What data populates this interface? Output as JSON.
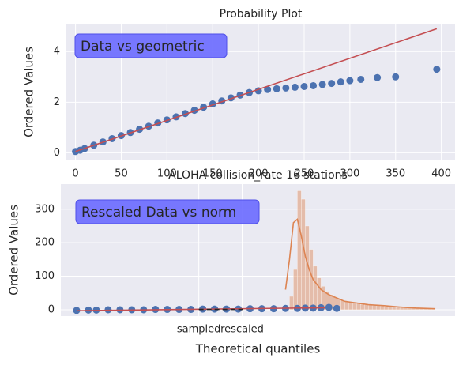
{
  "chart_data": [
    {
      "type": "scatter",
      "title": "Probability Plot",
      "ylabel": "Ordered Values",
      "annotation": "Data vs geometric",
      "x": [
        0,
        5,
        10,
        20,
        30,
        40,
        50,
        60,
        70,
        80,
        90,
        100,
        110,
        120,
        130,
        140,
        150,
        160,
        170,
        180,
        190,
        200,
        210,
        220,
        230,
        240,
        250,
        260,
        270,
        280,
        290,
        300,
        312,
        330,
        350,
        395
      ],
      "y": [
        0.05,
        0.1,
        0.17,
        0.3,
        0.43,
        0.56,
        0.68,
        0.8,
        0.93,
        1.05,
        1.18,
        1.3,
        1.42,
        1.55,
        1.68,
        1.8,
        1.93,
        2.05,
        2.17,
        2.28,
        2.38,
        2.45,
        2.5,
        2.53,
        2.56,
        2.59,
        2.62,
        2.65,
        2.7,
        2.74,
        2.8,
        2.85,
        2.9,
        2.97,
        3.0,
        3.3
      ],
      "color": "#4c72b0",
      "line": {
        "x": [
          0,
          395
        ],
        "y": [
          0.05,
          4.9
        ],
        "color": "#c44e52"
      },
      "xlim": [
        -10,
        415
      ],
      "xticks": [
        0,
        50,
        100,
        150,
        200,
        250,
        300,
        350,
        400
      ],
      "ylim": [
        -0.3,
        5.1
      ],
      "yticks": [
        0,
        2,
        4
      ],
      "grid": true
    },
    {
      "type": "histogram",
      "title": "ALOHA collision_rate 16 stations",
      "ylabel": "Ordered Values",
      "xlabel": "Theoretical quantiles",
      "annotation": "Rescaled Data vs norm",
      "bins": [
        57,
        58,
        59,
        60,
        61,
        62,
        63,
        64,
        65,
        66,
        67,
        68,
        69,
        70,
        71,
        72,
        73,
        74,
        75,
        76,
        77,
        78,
        79,
        80,
        81,
        82,
        83,
        84,
        85,
        86,
        87,
        88,
        89,
        90,
        91,
        92,
        93,
        94,
        95
      ],
      "counts": [
        5,
        40,
        120,
        355,
        330,
        250,
        180,
        130,
        95,
        70,
        55,
        45,
        38,
        32,
        28,
        25,
        22,
        20,
        18,
        16,
        15,
        14,
        13,
        12,
        11,
        10,
        9,
        8,
        7,
        6,
        6,
        5,
        5,
        4,
        4,
        3,
        3,
        2
      ],
      "color": "#dd8452",
      "kde": {
        "x": [
          57,
          58,
          59,
          60,
          61,
          62,
          63,
          64,
          66,
          68,
          70,
          72,
          75,
          78,
          82,
          86,
          90,
          95
        ],
        "y": [
          60,
          150,
          260,
          270,
          220,
          160,
          120,
          90,
          60,
          45,
          35,
          25,
          20,
          15,
          12,
          8,
          5,
          3
        ],
        "color": "#dd8452"
      },
      "scatter": {
        "x": [
          4,
          7,
          9,
          12,
          15,
          18,
          21,
          24,
          27,
          30,
          33,
          36,
          39,
          42,
          45,
          48,
          51,
          54,
          57,
          60,
          62,
          64,
          66,
          68,
          70
        ],
        "y": [
          -2,
          -1,
          -1,
          0,
          0,
          0,
          0,
          1,
          1,
          1,
          1,
          2,
          2,
          2,
          2,
          3,
          3,
          3,
          4,
          4,
          5,
          5,
          6,
          7,
          4
        ],
        "color": "#4c72b0"
      },
      "fit_line": {
        "x": [
          4,
          67
        ],
        "y": [
          -3,
          6
        ],
        "color": "#c44e52"
      },
      "dashed_line": {
        "x": [
          35,
          47
        ],
        "y": [
          1,
          1
        ],
        "color": "#262626"
      },
      "xlim": [
        0,
        100
      ],
      "xticks": [
        {
          "value": 35,
          "label": "sampled"
        },
        {
          "value": 46,
          "label": "rescaled"
        }
      ],
      "ylim": [
        -19,
        375
      ],
      "yticks": [
        0,
        100,
        200,
        300
      ],
      "grid": true
    }
  ]
}
